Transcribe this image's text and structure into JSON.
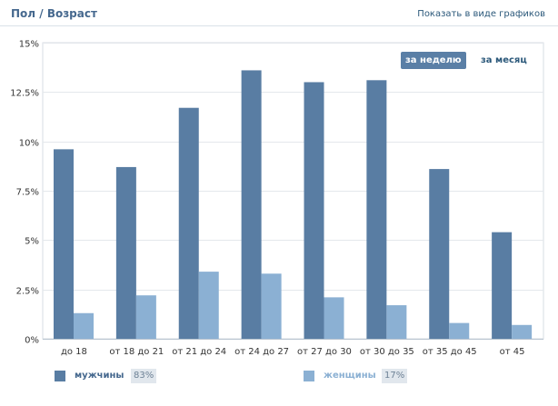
{
  "header": {
    "title": "Пол / Возраст",
    "link": "Показать в виде графиков"
  },
  "period": {
    "week_label": "за неделю",
    "month_label": "за месяц",
    "active": "week"
  },
  "legend": {
    "men_label": "мужчины",
    "men_pct": "83%",
    "women_label": "женщины",
    "women_pct": "17%"
  },
  "chart_data": {
    "type": "bar",
    "categories": [
      "до 18",
      "от 18 до 21",
      "от 21 до 24",
      "от 24 до 27",
      "от 27 до 30",
      "от 30 до 35",
      "от 35 до 45",
      "от 45"
    ],
    "series": [
      {
        "name": "мужчины",
        "color": "#597da3",
        "values": [
          9.6,
          8.7,
          11.7,
          13.6,
          13.0,
          13.1,
          8.6,
          5.4
        ]
      },
      {
        "name": "женщины",
        "color": "#8bb0d3",
        "values": [
          1.3,
          2.2,
          3.4,
          3.3,
          2.1,
          1.7,
          0.8,
          0.7
        ]
      }
    ],
    "yticks": [
      "0%",
      "2.5%",
      "5%",
      "7.5%",
      "10%",
      "12.5%",
      "15%"
    ],
    "ylim": [
      0,
      15
    ],
    "grid": true,
    "title": "",
    "xlabel": "",
    "ylabel": ""
  }
}
